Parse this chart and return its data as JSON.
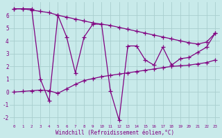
{
  "x": [
    0,
    1,
    2,
    3,
    4,
    5,
    6,
    7,
    8,
    9,
    10,
    11,
    12,
    13,
    14,
    15,
    16,
    17,
    18,
    19,
    20,
    21,
    22,
    23
  ],
  "y_main": [
    6.5,
    6.5,
    6.5,
    1.0,
    -0.7,
    6.0,
    4.3,
    1.5,
    4.3,
    5.3,
    5.3,
    0.1,
    -2.2,
    3.6,
    3.6,
    2.5,
    2.1,
    3.5,
    2.1,
    2.6,
    2.7,
    3.1,
    3.5,
    4.6
  ],
  "y_upper": [
    6.5,
    6.5,
    6.4,
    6.3,
    6.2,
    6.0,
    5.85,
    5.7,
    5.55,
    5.4,
    5.3,
    5.2,
    5.05,
    4.9,
    4.75,
    4.6,
    4.45,
    4.3,
    4.15,
    4.0,
    3.85,
    3.75,
    3.9,
    4.6
  ],
  "y_lower": [
    0.0,
    0.05,
    0.1,
    0.15,
    0.1,
    -0.1,
    0.25,
    0.6,
    0.9,
    1.05,
    1.2,
    1.3,
    1.4,
    1.5,
    1.6,
    1.7,
    1.8,
    1.9,
    2.0,
    2.05,
    2.1,
    2.2,
    2.3,
    2.5
  ],
  "background_color": "#c8eaea",
  "line_color": "#800080",
  "grid_color": "#a8cece",
  "xlabel": "Windchill (Refroidissement éolien,°C)",
  "ylim": [
    -2.5,
    7.0
  ],
  "xlim": [
    -0.5,
    23.5
  ],
  "yticks": [
    -2,
    -1,
    0,
    1,
    2,
    3,
    4,
    5,
    6
  ],
  "xticks": [
    0,
    1,
    2,
    3,
    4,
    5,
    6,
    7,
    8,
    9,
    10,
    11,
    12,
    13,
    14,
    15,
    16,
    17,
    18,
    19,
    20,
    21,
    22,
    23
  ],
  "font_color": "#800080",
  "marker": "+",
  "markersize": 4,
  "linewidth": 0.9
}
